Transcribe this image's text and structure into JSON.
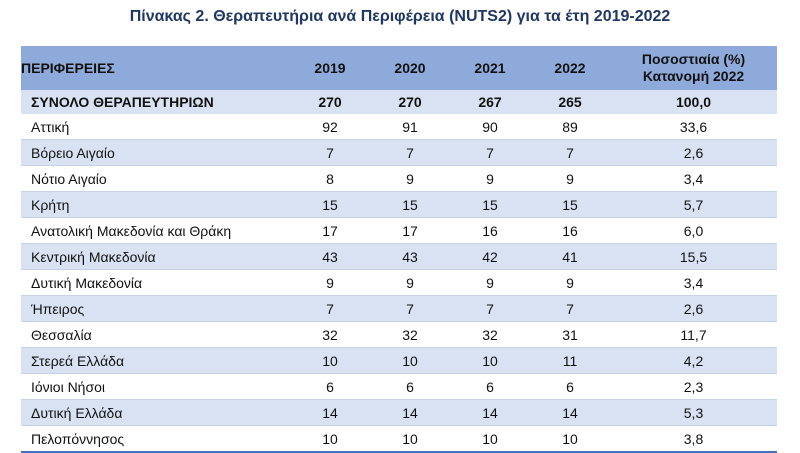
{
  "title": "Πίνακας 2. Θεραπευτήρια ανά Περιφέρεια (NUTS2) για τα έτη 2019-2022",
  "header": {
    "region": "ΠΕΡΙΦΕΡΕΙΕΣ",
    "years": [
      "2019",
      "2020",
      "2021",
      "2022"
    ],
    "pct_line1": "Ποσοστιαία (%)",
    "pct_line2": "Κατανομή 2022"
  },
  "total": {
    "name": "ΣΥΝΟΛΟ ΘΕΡΑΠΕΥΤΗΡΙΩΝ",
    "values": [
      "270",
      "270",
      "267",
      "265"
    ],
    "pct": "100,0"
  },
  "rows": [
    {
      "name": "Αττική",
      "values": [
        "92",
        "91",
        "90",
        "89"
      ],
      "pct": "33,6"
    },
    {
      "name": "Βόρειο Αιγαίο",
      "values": [
        "7",
        "7",
        "7",
        "7"
      ],
      "pct": "2,6"
    },
    {
      "name": "Νότιο Αιγαίο",
      "values": [
        "8",
        "9",
        "9",
        "9"
      ],
      "pct": "3,4"
    },
    {
      "name": "Κρήτη",
      "values": [
        "15",
        "15",
        "15",
        "15"
      ],
      "pct": "5,7"
    },
    {
      "name": "Ανατολική Μακεδονία και Θράκη",
      "values": [
        "17",
        "17",
        "16",
        "16"
      ],
      "pct": "6,0"
    },
    {
      "name": "Κεντρική Μακεδονία",
      "values": [
        "43",
        "43",
        "42",
        "41"
      ],
      "pct": "15,5"
    },
    {
      "name": "Δυτική Μακεδονία",
      "values": [
        "9",
        "9",
        "9",
        "9"
      ],
      "pct": "3,4"
    },
    {
      "name": "Ήπειρος",
      "values": [
        "7",
        "7",
        "7",
        "7"
      ],
      "pct": "2,6"
    },
    {
      "name": "Θεσσαλία",
      "values": [
        "32",
        "32",
        "32",
        "31"
      ],
      "pct": "11,7"
    },
    {
      "name": "Στερεά Ελλάδα",
      "values": [
        "10",
        "10",
        "10",
        "11"
      ],
      "pct": "4,2"
    },
    {
      "name": "Ιόνιοι Νήσοι",
      "values": [
        "6",
        "6",
        "6",
        "6"
      ],
      "pct": "2,3"
    },
    {
      "name": "Δυτική Ελλάδα",
      "values": [
        "14",
        "14",
        "14",
        "14"
      ],
      "pct": "5,3"
    },
    {
      "name": "Πελοπόννησος",
      "values": [
        "10",
        "10",
        "10",
        "10"
      ],
      "pct": "3,8"
    }
  ]
}
